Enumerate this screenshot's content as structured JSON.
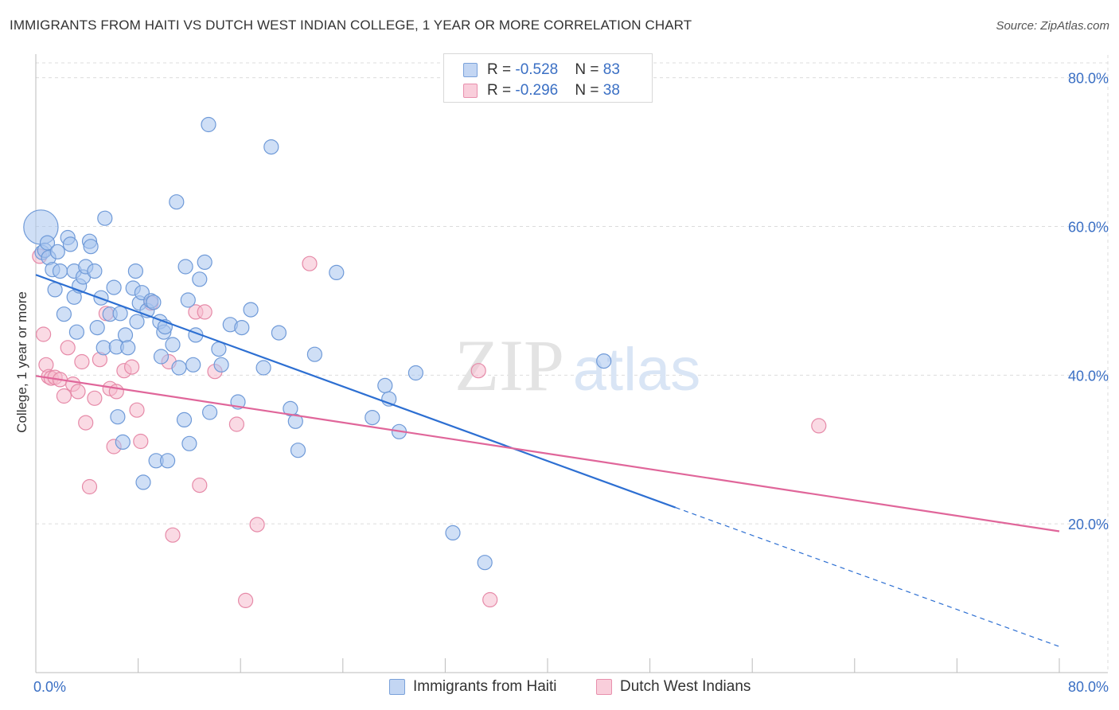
{
  "title": "IMMIGRANTS FROM HAITI VS DUTCH WEST INDIAN COLLEGE, 1 YEAR OR MORE CORRELATION CHART",
  "source": "Source: ZipAtlas.com",
  "watermark": {
    "zip": "ZIP",
    "atlas": "atlas"
  },
  "legend": {
    "series1": {
      "r_label": "R = ",
      "r_value": "-0.528",
      "n_label": "N = ",
      "n_value": "83"
    },
    "series2": {
      "r_label": "R = ",
      "r_value": "-0.296",
      "n_label": "N = ",
      "n_value": "38"
    }
  },
  "chart_data": {
    "type": "scatter",
    "title": "IMMIGRANTS FROM HAITI VS DUTCH WEST INDIAN COLLEGE, 1 YEAR OR MORE CORRELATION CHART",
    "xlabel": "",
    "ylabel": "College, 1 year or more",
    "xlim": [
      0,
      80
    ],
    "ylim": [
      0,
      82
    ],
    "x_tick_labels": [
      "0.0%",
      "80.0%"
    ],
    "y_ticks": [
      20,
      40,
      60,
      80
    ],
    "y_tick_labels": [
      "20.0%",
      "40.0%",
      "60.0%",
      "80.0%"
    ],
    "grid": true,
    "legend_position": "top-center",
    "colors": {
      "series1_fill": "#a8c4ee",
      "series1_stroke": "#6f9ad8",
      "series1_line": "#2d6fd2",
      "series2_fill": "#f6bccd",
      "series2_stroke": "#e68aa8",
      "series2_line": "#e0669a"
    },
    "series": [
      {
        "name": "Immigrants from Haiti",
        "trend": {
          "x": [
            0,
            50
          ],
          "y": [
            53.5,
            22.2
          ],
          "dashed_to": [
            80,
            3.5
          ]
        },
        "points": [
          [
            0.4,
            59.9,
            2.4
          ],
          [
            0.5,
            56.5,
            1
          ],
          [
            0.7,
            56.8,
            1
          ],
          [
            0.9,
            57.8,
            1
          ],
          [
            1.0,
            55.8,
            1
          ],
          [
            1.3,
            54.2,
            1
          ],
          [
            1.5,
            51.5,
            1
          ],
          [
            1.7,
            56.6,
            1
          ],
          [
            1.9,
            54.0,
            1
          ],
          [
            2.2,
            48.2,
            1
          ],
          [
            2.5,
            58.5,
            1
          ],
          [
            2.7,
            57.6,
            1
          ],
          [
            3.0,
            50.5,
            1
          ],
          [
            3.0,
            54.0,
            1
          ],
          [
            3.2,
            45.8,
            1
          ],
          [
            3.4,
            52.0,
            1
          ],
          [
            3.7,
            53.2,
            1
          ],
          [
            3.9,
            54.6,
            1
          ],
          [
            4.2,
            58.0,
            1
          ],
          [
            4.3,
            57.3,
            1
          ],
          [
            4.6,
            54.0,
            1
          ],
          [
            4.8,
            46.4,
            1
          ],
          [
            5.1,
            50.4,
            1
          ],
          [
            5.3,
            43.7,
            1
          ],
          [
            5.4,
            61.1,
            1
          ],
          [
            5.8,
            48.2,
            1
          ],
          [
            6.1,
            51.8,
            1
          ],
          [
            6.3,
            43.8,
            1
          ],
          [
            6.4,
            34.4,
            1
          ],
          [
            6.6,
            48.3,
            1
          ],
          [
            6.8,
            31.0,
            1
          ],
          [
            7.0,
            45.4,
            1
          ],
          [
            7.2,
            43.7,
            1
          ],
          [
            7.6,
            51.7,
            1
          ],
          [
            7.8,
            54.0,
            1
          ],
          [
            7.9,
            47.2,
            1
          ],
          [
            8.1,
            49.7,
            1
          ],
          [
            8.3,
            51.1,
            1
          ],
          [
            8.4,
            25.6,
            1
          ],
          [
            8.7,
            48.7,
            1
          ],
          [
            9.0,
            50.0,
            1
          ],
          [
            9.2,
            49.8,
            1
          ],
          [
            9.4,
            28.5,
            1
          ],
          [
            9.7,
            47.2,
            1
          ],
          [
            9.8,
            42.5,
            1
          ],
          [
            10.0,
            45.8,
            1
          ],
          [
            10.1,
            46.5,
            1
          ],
          [
            10.3,
            28.5,
            1
          ],
          [
            10.7,
            44.1,
            1
          ],
          [
            11.0,
            63.3,
            1
          ],
          [
            11.2,
            41.0,
            1
          ],
          [
            11.6,
            34.0,
            1
          ],
          [
            11.7,
            54.6,
            1
          ],
          [
            11.9,
            50.1,
            1
          ],
          [
            12.0,
            30.8,
            1
          ],
          [
            12.3,
            41.4,
            1
          ],
          [
            12.5,
            45.4,
            1
          ],
          [
            12.8,
            52.9,
            1
          ],
          [
            13.2,
            55.2,
            1
          ],
          [
            13.5,
            73.7,
            1
          ],
          [
            13.6,
            35.0,
            1
          ],
          [
            14.3,
            43.5,
            1
          ],
          [
            14.5,
            41.4,
            1
          ],
          [
            15.2,
            46.8,
            1
          ],
          [
            15.8,
            36.4,
            1
          ],
          [
            16.1,
            46.4,
            1
          ],
          [
            16.8,
            48.8,
            1
          ],
          [
            17.8,
            41.0,
            1
          ],
          [
            18.4,
            70.7,
            1
          ],
          [
            19.0,
            45.7,
            1
          ],
          [
            19.9,
            35.5,
            1
          ],
          [
            20.3,
            33.8,
            1
          ],
          [
            20.5,
            29.9,
            1
          ],
          [
            21.8,
            42.8,
            1
          ],
          [
            23.5,
            53.8,
            1
          ],
          [
            26.3,
            34.3,
            1
          ],
          [
            27.3,
            38.6,
            1
          ],
          [
            27.6,
            36.8,
            1
          ],
          [
            28.4,
            32.4,
            1
          ],
          [
            29.7,
            40.3,
            1
          ],
          [
            32.6,
            18.8,
            1
          ],
          [
            35.1,
            14.8,
            1
          ],
          [
            44.4,
            41.9,
            1
          ]
        ]
      },
      {
        "name": "Dutch West Indians",
        "trend": {
          "x": [
            0,
            80
          ],
          "y": [
            39.9,
            19.0
          ]
        },
        "points": [
          [
            0.3,
            56.0,
            1
          ],
          [
            0.6,
            45.5,
            1
          ],
          [
            0.8,
            41.4,
            1
          ],
          [
            1.0,
            39.8,
            1
          ],
          [
            1.2,
            39.6,
            1
          ],
          [
            1.5,
            39.7,
            1
          ],
          [
            1.9,
            39.4,
            1
          ],
          [
            2.2,
            37.2,
            1
          ],
          [
            2.5,
            43.7,
            1
          ],
          [
            2.9,
            38.8,
            1
          ],
          [
            3.3,
            37.8,
            1
          ],
          [
            3.6,
            41.8,
            1
          ],
          [
            3.9,
            33.6,
            1
          ],
          [
            4.2,
            25.0,
            1
          ],
          [
            4.6,
            36.9,
            1
          ],
          [
            5.0,
            42.1,
            1
          ],
          [
            5.5,
            48.3,
            1
          ],
          [
            5.8,
            38.2,
            1
          ],
          [
            6.1,
            30.4,
            1
          ],
          [
            6.3,
            37.8,
            1
          ],
          [
            6.9,
            40.6,
            1
          ],
          [
            7.5,
            41.1,
            1
          ],
          [
            7.9,
            35.3,
            1
          ],
          [
            8.2,
            31.1,
            1
          ],
          [
            9.0,
            49.7,
            1
          ],
          [
            10.4,
            41.8,
            1
          ],
          [
            10.7,
            18.5,
            1
          ],
          [
            12.5,
            48.5,
            1
          ],
          [
            12.8,
            25.2,
            1
          ],
          [
            13.2,
            48.5,
            1
          ],
          [
            14.0,
            40.5,
            1
          ],
          [
            15.7,
            33.4,
            1
          ],
          [
            16.4,
            9.7,
            1
          ],
          [
            17.3,
            19.9,
            1
          ],
          [
            21.4,
            55.0,
            1
          ],
          [
            34.6,
            40.6,
            1
          ],
          [
            35.5,
            9.8,
            1
          ],
          [
            61.2,
            33.2,
            1
          ]
        ]
      }
    ]
  }
}
